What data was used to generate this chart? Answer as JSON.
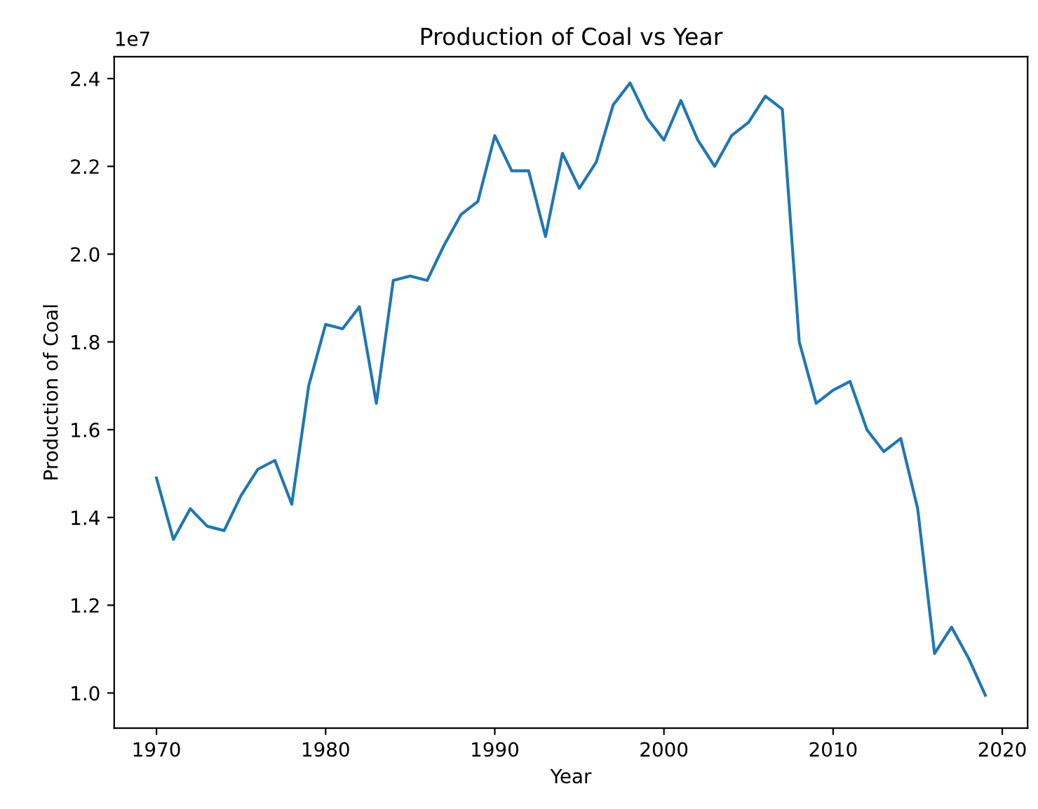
{
  "chart_data": {
    "type": "line",
    "title": "Production of Coal vs Year",
    "xlabel": "Year",
    "ylabel": "Production of Coal",
    "x": [
      1970,
      1971,
      1972,
      1973,
      1974,
      1975,
      1976,
      1977,
      1978,
      1979,
      1980,
      1981,
      1982,
      1983,
      1984,
      1985,
      1986,
      1987,
      1988,
      1989,
      1990,
      1991,
      1992,
      1993,
      1994,
      1995,
      1996,
      1997,
      1998,
      1999,
      2000,
      2001,
      2002,
      2003,
      2004,
      2005,
      2006,
      2007,
      2008,
      2009,
      2010,
      2011,
      2012,
      2013,
      2014,
      2015,
      2016,
      2017,
      2018,
      2019
    ],
    "series": [
      {
        "color": "#1f77b4",
        "values": [
          1.49,
          1.35,
          1.42,
          1.38,
          1.37,
          1.45,
          1.51,
          1.53,
          1.43,
          1.7,
          1.84,
          1.83,
          1.88,
          1.66,
          1.94,
          1.95,
          1.94,
          2.02,
          2.09,
          2.12,
          2.27,
          2.19,
          2.19,
          2.04,
          2.23,
          2.15,
          2.21,
          2.34,
          2.39,
          2.31,
          2.26,
          2.35,
          2.26,
          2.2,
          2.27,
          2.3,
          2.36,
          2.33,
          1.8,
          1.66,
          1.69,
          1.71,
          1.6,
          1.55,
          1.58,
          1.42,
          1.09,
          1.15,
          1.08,
          0.995
        ]
      }
    ],
    "xlim": [
      1967.5,
      2021.5
    ],
    "xticks": [
      1970,
      1980,
      1990,
      2000,
      2010,
      2020
    ],
    "ylim": [
      0.92,
      2.45
    ],
    "yticks": [
      {
        "value": 1,
        "label": "1.0"
      },
      1.2,
      1.4,
      1.6,
      1.8,
      {
        "value": 2,
        "label": "2.0"
      },
      2.2,
      2.4
    ],
    "annotations": [
      "1e7"
    ],
    "grid": false
  }
}
